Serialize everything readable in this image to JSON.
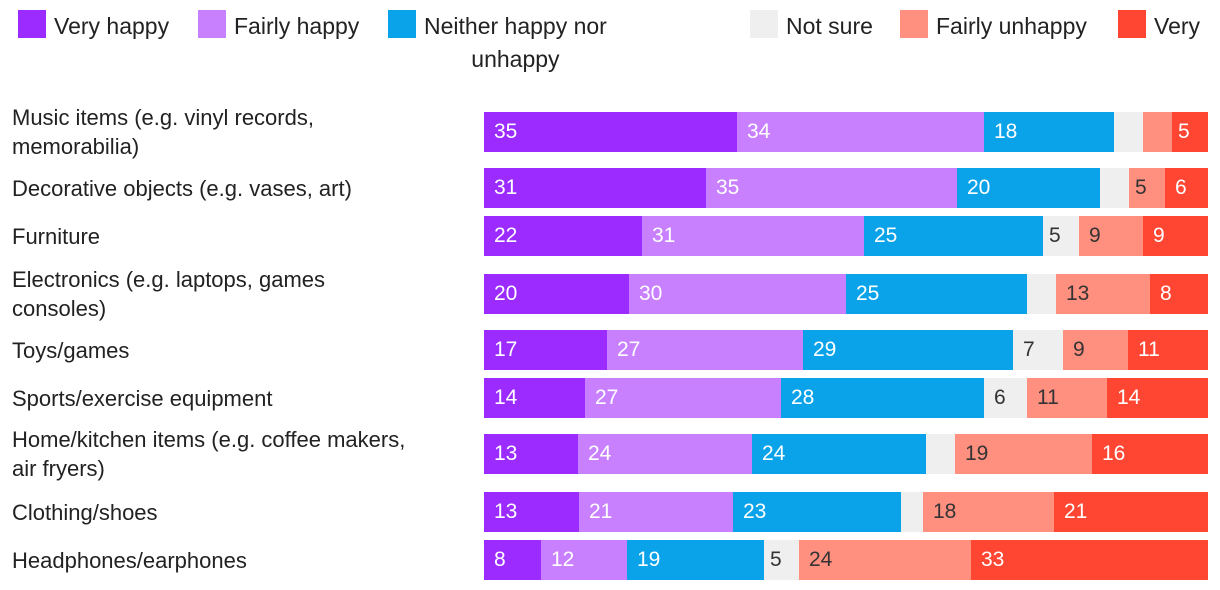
{
  "chart_data": {
    "type": "bar",
    "orientation": "horizontal",
    "stacked": true,
    "legend_position": "top",
    "colors": {
      "Very happy": "#9b2bff",
      "Fairly happy": "#c880ff",
      "Neither happy nor unhappy": "#0aa3ea",
      "Not sure": "#efefef",
      "Fairly unhappy": "#ff9080",
      "Very unhappy": "#ff4632"
    },
    "legend": [
      {
        "name": "Very happy",
        "lines": [
          "Very happy"
        ]
      },
      {
        "name": "Fairly happy",
        "lines": [
          "Fairly happy"
        ]
      },
      {
        "name": "Neither happy nor unhappy",
        "lines": [
          "Neither happy nor",
          "unhappy"
        ]
      },
      {
        "name": "Not sure",
        "lines": [
          "Not sure"
        ]
      },
      {
        "name": "Fairly unhappy",
        "lines": [
          "Fairly unhappy"
        ]
      },
      {
        "name": "Very unhappy",
        "lines": [
          "Very"
        ]
      }
    ],
    "categories": [
      {
        "label": [
          "Music items (e.g. vinyl records,",
          "memorabilia)"
        ],
        "values": [
          35,
          34,
          18,
          4,
          4,
          5
        ],
        "labels": [
          "35",
          "34",
          "18",
          "",
          "",
          "5"
        ]
      },
      {
        "label": [
          "Decorative objects (e.g. vases, art)"
        ],
        "values": [
          31,
          35,
          20,
          4,
          5,
          6
        ],
        "labels": [
          "31",
          "35",
          "20",
          "",
          "5",
          "6"
        ]
      },
      {
        "label": [
          "Furniture"
        ],
        "values": [
          22,
          31,
          25,
          5,
          9,
          9
        ],
        "labels": [
          "22",
          "31",
          "25",
          "5",
          "9",
          "9"
        ]
      },
      {
        "label": [
          "Electronics (e.g. laptops, games",
          "consoles)"
        ],
        "values": [
          20,
          30,
          25,
          4,
          13,
          8
        ],
        "labels": [
          "20",
          "30",
          "25",
          "",
          "13",
          "8"
        ]
      },
      {
        "label": [
          "Toys/games"
        ],
        "values": [
          17,
          27,
          29,
          7,
          9,
          11
        ],
        "labels": [
          "17",
          "27",
          "29",
          "7",
          "9",
          "11"
        ]
      },
      {
        "label": [
          "Sports/exercise equipment"
        ],
        "values": [
          14,
          27,
          28,
          6,
          11,
          14
        ],
        "labels": [
          "14",
          "27",
          "28",
          "6",
          "11",
          "14"
        ]
      },
      {
        "label": [
          "Home/kitchen items (e.g. coffee makers,",
          "air fryers)"
        ],
        "values": [
          13,
          24,
          24,
          4,
          19,
          16
        ],
        "labels": [
          "13",
          "24",
          "24",
          "",
          "19",
          "16"
        ]
      },
      {
        "label": [
          "Clothing/shoes"
        ],
        "values": [
          13,
          21,
          23,
          3,
          18,
          21
        ],
        "labels": [
          "13",
          "21",
          "23",
          "",
          "18",
          "21"
        ]
      },
      {
        "label": [
          "Headphones/earphones"
        ],
        "values": [
          8,
          12,
          19,
          5,
          24,
          33
        ],
        "labels": [
          "8",
          "12",
          "19",
          "5",
          "24",
          "33"
        ]
      }
    ]
  }
}
